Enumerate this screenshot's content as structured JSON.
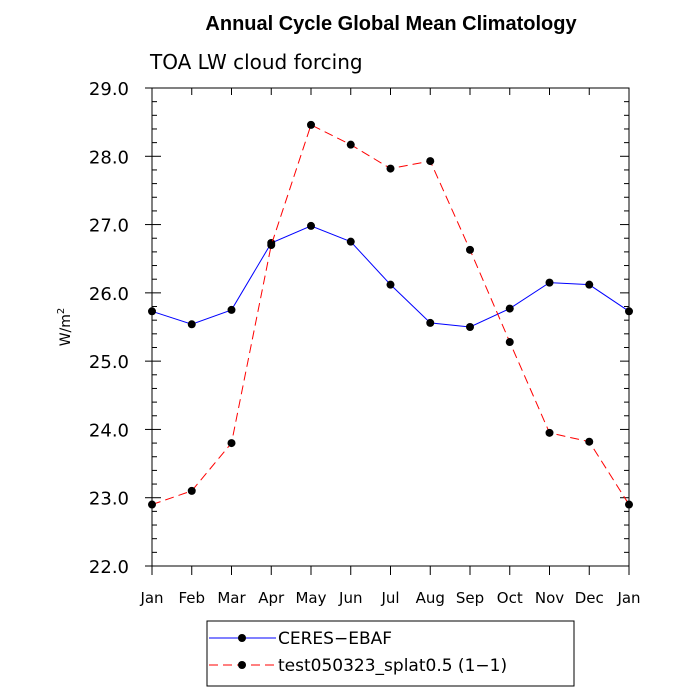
{
  "chart_data": {
    "type": "line",
    "title": "Annual Cycle Global Mean Climatology",
    "subtitle": "TOA LW cloud forcing",
    "xlabel": "",
    "ylabel": "W/m",
    "ylabel_sup": "2",
    "categories": [
      "Jan",
      "Feb",
      "Mar",
      "Apr",
      "May",
      "Jun",
      "Jul",
      "Aug",
      "Sep",
      "Oct",
      "Nov",
      "Dec",
      "Jan"
    ],
    "ylim": [
      22.0,
      29.0
    ],
    "yticks": [
      "22.0",
      "23.0",
      "24.0",
      "25.0",
      "26.0",
      "27.0",
      "28.0",
      "29.0"
    ],
    "series": [
      {
        "name": "CERES−EBAF",
        "color": "#0000ff",
        "style": "solid",
        "values": [
          25.73,
          25.54,
          25.75,
          26.73,
          26.98,
          26.75,
          26.12,
          25.56,
          25.5,
          25.77,
          26.15,
          26.12,
          25.73
        ]
      },
      {
        "name": "test050323_splat0.5 (1−1)",
        "color": "#ff0000",
        "style": "dashed",
        "values": [
          22.9,
          23.1,
          23.8,
          26.7,
          28.46,
          28.17,
          27.82,
          27.93,
          26.63,
          25.28,
          23.95,
          23.82,
          22.9
        ]
      }
    ],
    "legend_position": "bottom"
  }
}
